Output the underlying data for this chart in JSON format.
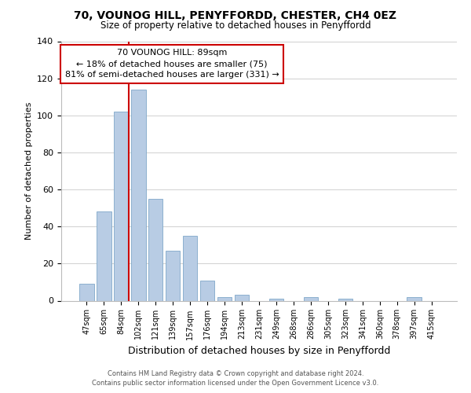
{
  "title": "70, VOUNOG HILL, PENYFFORDD, CHESTER, CH4 0EZ",
  "subtitle": "Size of property relative to detached houses in Penyffordd",
  "xlabel": "Distribution of detached houses by size in Penyffordd",
  "ylabel": "Number of detached properties",
  "bar_labels": [
    "47sqm",
    "65sqm",
    "84sqm",
    "102sqm",
    "121sqm",
    "139sqm",
    "157sqm",
    "176sqm",
    "194sqm",
    "213sqm",
    "231sqm",
    "249sqm",
    "268sqm",
    "286sqm",
    "305sqm",
    "323sqm",
    "341sqm",
    "360sqm",
    "378sqm",
    "397sqm",
    "415sqm"
  ],
  "bar_values": [
    9,
    48,
    102,
    114,
    55,
    27,
    35,
    11,
    2,
    3,
    0,
    1,
    0,
    2,
    0,
    1,
    0,
    0,
    0,
    2,
    0
  ],
  "bar_color": "#b8cce4",
  "bar_edge_color": "#7fa8c9",
  "vline_index": 2,
  "vline_color": "#cc0000",
  "ylim": [
    0,
    140
  ],
  "yticks": [
    0,
    20,
    40,
    60,
    80,
    100,
    120,
    140
  ],
  "annotation_line0": "70 VOUNOG HILL: 89sqm",
  "annotation_line1": "← 18% of detached houses are smaller (75)",
  "annotation_line2": "81% of semi-detached houses are larger (331) →",
  "annotation_box_color": "#ffffff",
  "annotation_box_edge": "#cc0000",
  "footer_line1": "Contains HM Land Registry data © Crown copyright and database right 2024.",
  "footer_line2": "Contains public sector information licensed under the Open Government Licence v3.0.",
  "background_color": "#ffffff",
  "grid_color": "#d0d0d0"
}
